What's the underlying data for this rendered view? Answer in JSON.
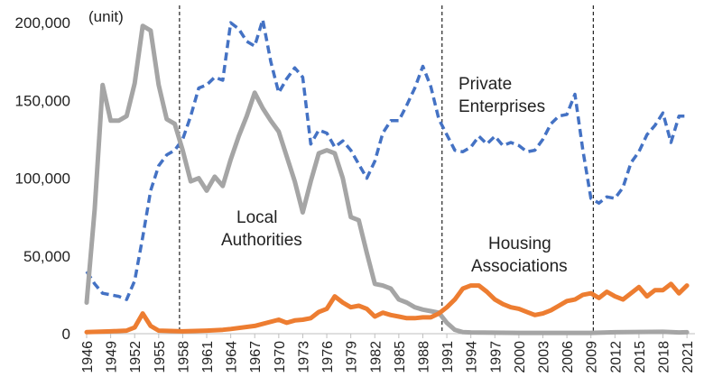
{
  "chart_data": {
    "type": "line",
    "unit_label": "(unit)",
    "ylim": [
      0,
      210000
    ],
    "yticks": [
      0,
      50000,
      100000,
      150000,
      200000
    ],
    "ytick_labels": [
      "0",
      "50,000",
      "100,000",
      "150,000",
      "200,000"
    ],
    "xlim": [
      1946,
      2022
    ],
    "xticks": [
      1946,
      1949,
      1952,
      1955,
      1958,
      1961,
      1964,
      1967,
      1970,
      1973,
      1976,
      1979,
      1982,
      1985,
      1988,
      1991,
      1994,
      1997,
      2000,
      2003,
      2006,
      2009,
      2012,
      2015,
      2018,
      2021
    ],
    "vlines": [
      1957.6,
      1990.4,
      2009.3
    ],
    "legend": "inline labels",
    "grid": false,
    "series": [
      {
        "name": "Local Authorities",
        "color": "#a5a5a5",
        "style": "solid",
        "label_lines": [
          "Local",
          "Authorities"
        ],
        "points": [
          [
            1946,
            20000
          ],
          [
            1947,
            80000
          ],
          [
            1948,
            160000
          ],
          [
            1949,
            137000
          ],
          [
            1950,
            137000
          ],
          [
            1951,
            140000
          ],
          [
            1952,
            161000
          ],
          [
            1953,
            198000
          ],
          [
            1954,
            195000
          ],
          [
            1955,
            160000
          ],
          [
            1956,
            138000
          ],
          [
            1957,
            135000
          ],
          [
            1958,
            118000
          ],
          [
            1959,
            98000
          ],
          [
            1960,
            100000
          ],
          [
            1961,
            92000
          ],
          [
            1962,
            101000
          ],
          [
            1963,
            95000
          ],
          [
            1964,
            112000
          ],
          [
            1965,
            127000
          ],
          [
            1966,
            140000
          ],
          [
            1967,
            155000
          ],
          [
            1968,
            145000
          ],
          [
            1969,
            137000
          ],
          [
            1970,
            130000
          ],
          [
            1971,
            114000
          ],
          [
            1972,
            98000
          ],
          [
            1973,
            78000
          ],
          [
            1974,
            98000
          ],
          [
            1975,
            116000
          ],
          [
            1976,
            118000
          ],
          [
            1977,
            116000
          ],
          [
            1978,
            100000
          ],
          [
            1979,
            75000
          ],
          [
            1980,
            73000
          ],
          [
            1981,
            52000
          ],
          [
            1982,
            32000
          ],
          [
            1983,
            31000
          ],
          [
            1984,
            29000
          ],
          [
            1985,
            22000
          ],
          [
            1986,
            20000
          ],
          [
            1987,
            17000
          ],
          [
            1988,
            15500
          ],
          [
            1989,
            14500
          ],
          [
            1990,
            13500
          ],
          [
            1991,
            7000
          ],
          [
            1992,
            2500
          ],
          [
            1993,
            1000
          ],
          [
            1994,
            800
          ],
          [
            2000,
            500
          ],
          [
            2009,
            500
          ],
          [
            2012,
            900
          ],
          [
            2018,
            1200
          ],
          [
            2020,
            800
          ],
          [
            2021,
            900
          ]
        ]
      },
      {
        "name": "Private Enterprises",
        "color": "#4472c4",
        "style": "dashed",
        "label_lines": [
          "Private",
          "Enterprises"
        ],
        "points": [
          [
            1946,
            40000
          ],
          [
            1947,
            32000
          ],
          [
            1948,
            26000
          ],
          [
            1949,
            25000
          ],
          [
            1950,
            24000
          ],
          [
            1951,
            22000
          ],
          [
            1952,
            34000
          ],
          [
            1953,
            62000
          ],
          [
            1954,
            92000
          ],
          [
            1955,
            108000
          ],
          [
            1956,
            115000
          ],
          [
            1957,
            118000
          ],
          [
            1958,
            125000
          ],
          [
            1959,
            140000
          ],
          [
            1960,
            158000
          ],
          [
            1961,
            160000
          ],
          [
            1962,
            165000
          ],
          [
            1963,
            163000
          ],
          [
            1964,
            200000
          ],
          [
            1965,
            196000
          ],
          [
            1966,
            188000
          ],
          [
            1967,
            185000
          ],
          [
            1968,
            202000
          ],
          [
            1969,
            175000
          ],
          [
            1970,
            155000
          ],
          [
            1971,
            164000
          ],
          [
            1972,
            171000
          ],
          [
            1973,
            165000
          ],
          [
            1974,
            122000
          ],
          [
            1975,
            131000
          ],
          [
            1976,
            129000
          ],
          [
            1977,
            120000
          ],
          [
            1978,
            124000
          ],
          [
            1979,
            118000
          ],
          [
            1980,
            109000
          ],
          [
            1981,
            100000
          ],
          [
            1982,
            111000
          ],
          [
            1983,
            129000
          ],
          [
            1984,
            137000
          ],
          [
            1985,
            137000
          ],
          [
            1986,
            147000
          ],
          [
            1987,
            158000
          ],
          [
            1988,
            172000
          ],
          [
            1989,
            159000
          ],
          [
            1990,
            138000
          ],
          [
            1991,
            128000
          ],
          [
            1992,
            118000
          ],
          [
            1993,
            117000
          ],
          [
            1994,
            120000
          ],
          [
            1995,
            127000
          ],
          [
            1996,
            122000
          ],
          [
            1997,
            127000
          ],
          [
            1998,
            121000
          ],
          [
            1999,
            123000
          ],
          [
            2000,
            121000
          ],
          [
            2001,
            117000
          ],
          [
            2002,
            118000
          ],
          [
            2003,
            125000
          ],
          [
            2004,
            135000
          ],
          [
            2005,
            140000
          ],
          [
            2006,
            141000
          ],
          [
            2007,
            154000
          ],
          [
            2008,
            118000
          ],
          [
            2009,
            87000
          ],
          [
            2010,
            84000
          ],
          [
            2011,
            88000
          ],
          [
            2012,
            87000
          ],
          [
            2013,
            94000
          ],
          [
            2014,
            110000
          ],
          [
            2015,
            117000
          ],
          [
            2016,
            128000
          ],
          [
            2017,
            134000
          ],
          [
            2018,
            142000
          ],
          [
            2019,
            123000
          ],
          [
            2020,
            140000
          ],
          [
            2021,
            140000
          ]
        ]
      },
      {
        "name": "Housing Associations",
        "color": "#ed7d31",
        "style": "solid",
        "label_lines": [
          "Housing",
          "Associations"
        ],
        "points": [
          [
            1946,
            1000
          ],
          [
            1949,
            1500
          ],
          [
            1951,
            2000
          ],
          [
            1952,
            4000
          ],
          [
            1953,
            13000
          ],
          [
            1954,
            5000
          ],
          [
            1955,
            2000
          ],
          [
            1958,
            1500
          ],
          [
            1961,
            2000
          ],
          [
            1963,
            2500
          ],
          [
            1964,
            3000
          ],
          [
            1967,
            5000
          ],
          [
            1970,
            9000
          ],
          [
            1971,
            7000
          ],
          [
            1972,
            8500
          ],
          [
            1973,
            9000
          ],
          [
            1974,
            10000
          ],
          [
            1975,
            14000
          ],
          [
            1976,
            16000
          ],
          [
            1977,
            24000
          ],
          [
            1978,
            20000
          ],
          [
            1979,
            17000
          ],
          [
            1980,
            18000
          ],
          [
            1981,
            16000
          ],
          [
            1982,
            11000
          ],
          [
            1983,
            13500
          ],
          [
            1984,
            12000
          ],
          [
            1985,
            11000
          ],
          [
            1986,
            10000
          ],
          [
            1987,
            10000
          ],
          [
            1988,
            10500
          ],
          [
            1989,
            10500
          ],
          [
            1990,
            13000
          ],
          [
            1991,
            17000
          ],
          [
            1992,
            22000
          ],
          [
            1993,
            29000
          ],
          [
            1994,
            31000
          ],
          [
            1995,
            31000
          ],
          [
            1996,
            27000
          ],
          [
            1997,
            22000
          ],
          [
            1998,
            19000
          ],
          [
            1999,
            17000
          ],
          [
            2000,
            16000
          ],
          [
            2001,
            14000
          ],
          [
            2002,
            12000
          ],
          [
            2003,
            13000
          ],
          [
            2004,
            15000
          ],
          [
            2005,
            18000
          ],
          [
            2006,
            21000
          ],
          [
            2007,
            22000
          ],
          [
            2008,
            25000
          ],
          [
            2009,
            26000
          ],
          [
            2010,
            23000
          ],
          [
            2011,
            27000
          ],
          [
            2012,
            24000
          ],
          [
            2013,
            22000
          ],
          [
            2014,
            26000
          ],
          [
            2015,
            30000
          ],
          [
            2016,
            24000
          ],
          [
            2017,
            28000
          ],
          [
            2018,
            28000
          ],
          [
            2019,
            32000
          ],
          [
            2020,
            26000
          ],
          [
            2021,
            31000
          ]
        ]
      }
    ]
  }
}
